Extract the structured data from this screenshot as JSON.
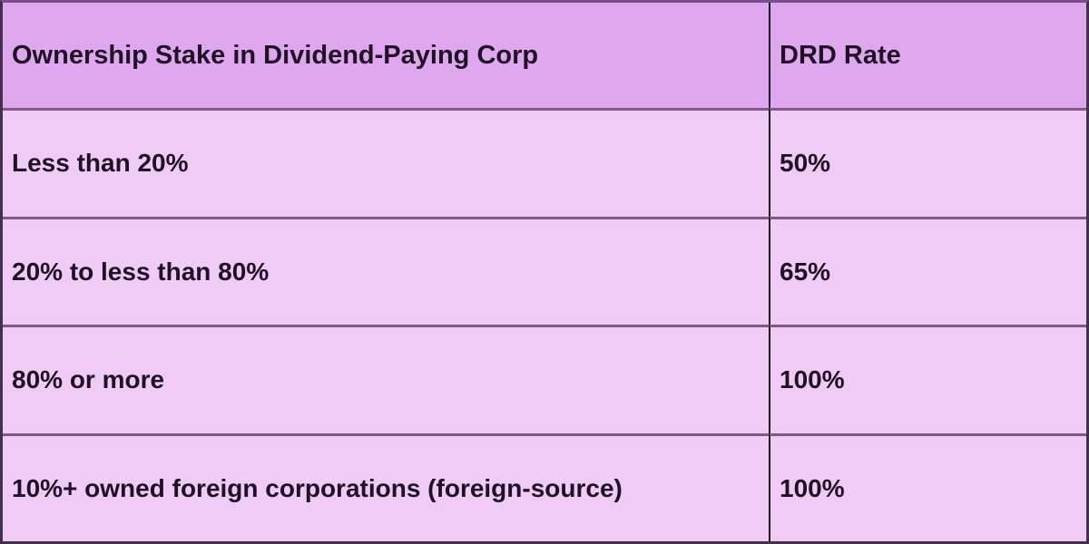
{
  "chart_data": {
    "type": "table",
    "columns": [
      "Ownership Stake in Dividend-Paying Corp",
      "DRD Rate"
    ],
    "rows": [
      [
        "Less than 20%",
        "50%"
      ],
      [
        "20% to less than 80%",
        "65%"
      ],
      [
        "80% or more",
        "100%"
      ],
      [
        "10%+ owned foreign corporations (foreign-source)",
        "100%"
      ]
    ]
  },
  "colors": {
    "header_bg": "#dfa8ee",
    "row_bg": "#efcbf5",
    "row_divider": "#7b5a85",
    "column_divider": "#191019",
    "outer_border": "#43304a",
    "top_border": "#7a4f8a",
    "text": "#201226"
  }
}
